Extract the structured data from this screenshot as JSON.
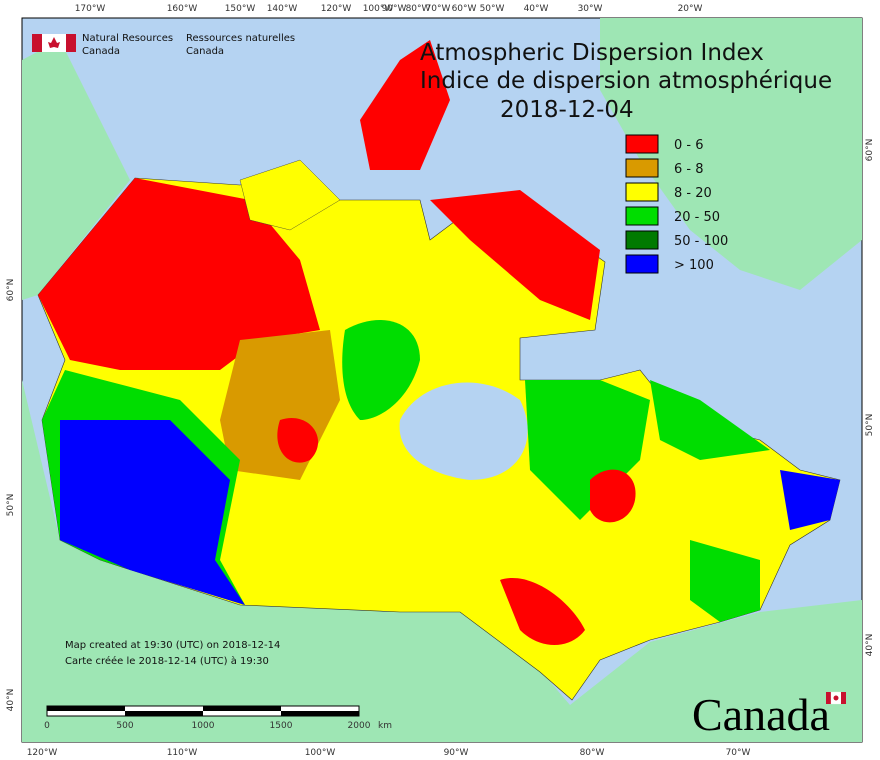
{
  "header": {
    "agency_en": "Natural Resources",
    "agency_en_2": "Canada",
    "agency_fr": "Ressources naturelles",
    "agency_fr_2": "Canada"
  },
  "title": {
    "en": "Atmospheric Dispersion Index",
    "fr": "Indice de dispersion atmosphérique",
    "date": "2018-12-04"
  },
  "legend": [
    {
      "label": "0 - 6",
      "color": "#ff0000"
    },
    {
      "label": "6 - 8",
      "color": "#d99a00"
    },
    {
      "label": "8 - 20",
      "color": "#ffff00"
    },
    {
      "label": "20 - 50",
      "color": "#00dd00"
    },
    {
      "label": "50 - 100",
      "color": "#007a00"
    },
    {
      "label": "> 100",
      "color": "#0000ff"
    }
  ],
  "graticule": {
    "top": [
      "170°W",
      "160°W",
      "150°W",
      "140°W",
      "120°W",
      "100°W",
      "90°W",
      "80°W",
      "70°W",
      "60°W",
      "50°W",
      "40°W",
      "30°W",
      "20°W"
    ],
    "bottom": [
      "120°W",
      "110°W",
      "100°W",
      "90°W",
      "80°W",
      "70°W"
    ],
    "left": [
      "60°N",
      "50°N",
      "40°N"
    ],
    "right": [
      "60°N",
      "50°N",
      "40°N"
    ]
  },
  "notes": [
    "Map created at 19:30 (UTC) on 2018-12-14",
    "Carte créée le 2018-12-14 (UTC) à 19:30"
  ],
  "scale_bar": {
    "labels": [
      "0",
      "500",
      "1000",
      "1500",
      "2000"
    ],
    "unit": "km"
  },
  "wordmark": "Canada"
}
